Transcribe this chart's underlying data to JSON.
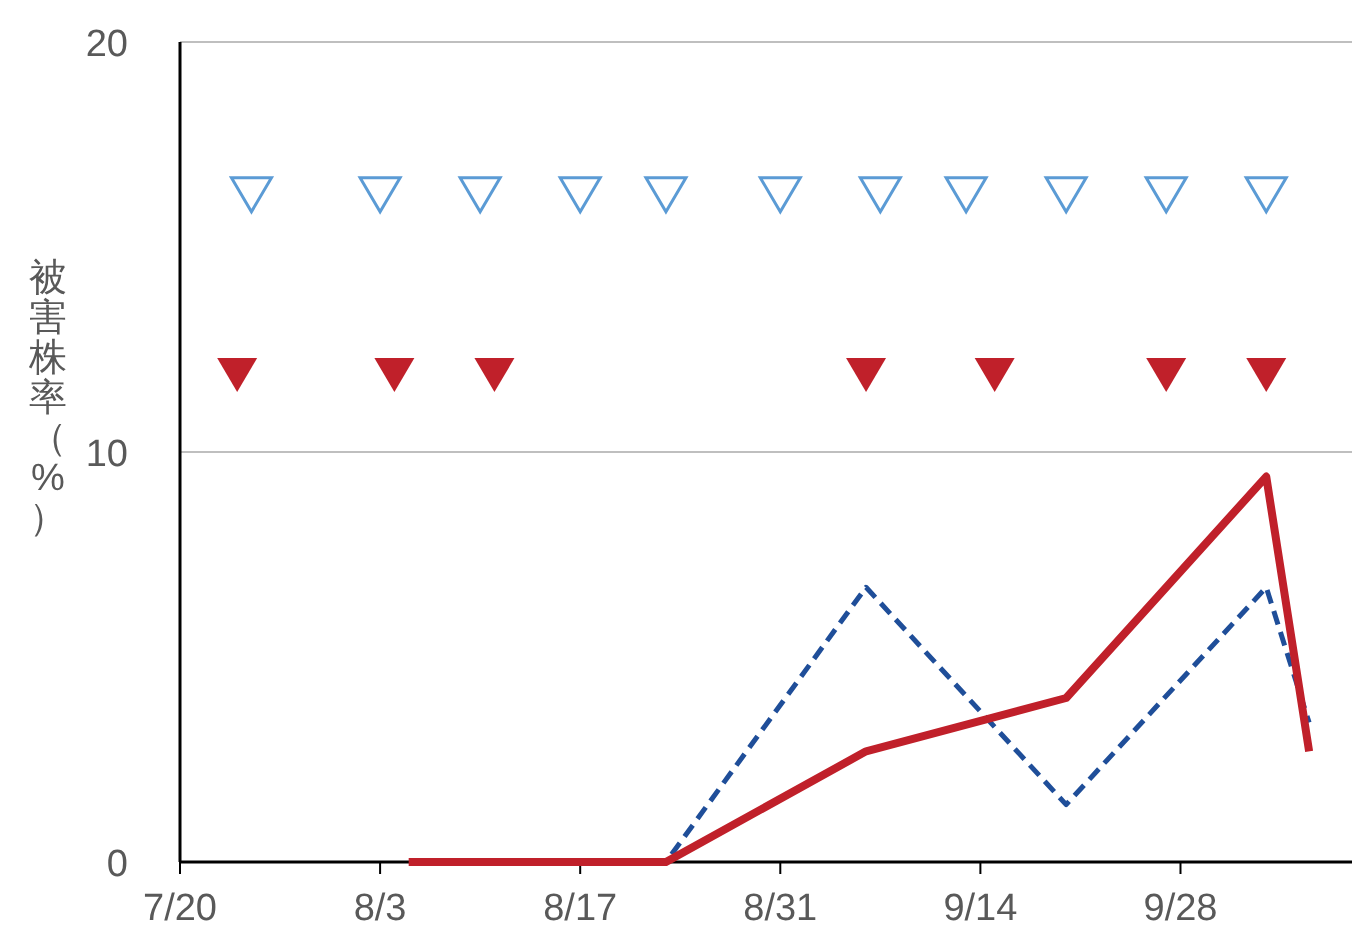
{
  "chart_data": {
    "type": "line",
    "ylabel": "被害株率（%）",
    "xlim": [
      "--07-20",
      "--10-10"
    ],
    "ylim": [
      0,
      20
    ],
    "yticks": [
      0,
      10,
      20
    ],
    "xticks": [
      {
        "value": "--07-20",
        "label": "7/20"
      },
      {
        "value": "--08-03",
        "label": "8/3"
      },
      {
        "value": "--08-17",
        "label": "8/17"
      },
      {
        "value": "--08-31",
        "label": "8/31"
      },
      {
        "value": "--09-14",
        "label": "9/14"
      },
      {
        "value": "--09-28",
        "label": "9/28"
      }
    ],
    "grid": "y",
    "marker": "none",
    "series": [
      {
        "type": "scatter",
        "marker": "triangle",
        "color": "#5b9bd5",
        "x": [
          "--07-25",
          "--08-03",
          "--08-10",
          "--08-17",
          "--08-23",
          "--08-31",
          "--09-07",
          "--09-13",
          "--09-20",
          "--09-27",
          "--10-04"
        ],
        "values": [
          16.3,
          16.3,
          16.3,
          16.3,
          16.3,
          16.3,
          16.3,
          16.3,
          16.3,
          16.3,
          16.3
        ]
      },
      {
        "type": "scatter",
        "marker": "triangle",
        "color": "#c0202a",
        "x": [
          "--07-24",
          "--08-04",
          "--08-11",
          "--09-06",
          "--09-15",
          "--09-27",
          "--10-04"
        ],
        "values": [
          11.9,
          11.9,
          11.9,
          11.9,
          11.9,
          11.9,
          11.9
        ]
      },
      {
        "line_style": "dashed",
        "color": "#1f4e99",
        "x": [
          "--08-05",
          "--08-23",
          "--09-06",
          "--09-20",
          "--10-04",
          "--10-07"
        ],
        "values": [
          0,
          0,
          6.7,
          1.4,
          6.7,
          3.4
        ]
      },
      {
        "line_style": "solid",
        "color": "#c0202a",
        "x": [
          "--08-05",
          "--08-23",
          "--09-06",
          "--09-20",
          "--10-04",
          "--10-07"
        ],
        "values": [
          0,
          0,
          2.7,
          4,
          9.4,
          2.7
        ]
      }
    ]
  }
}
